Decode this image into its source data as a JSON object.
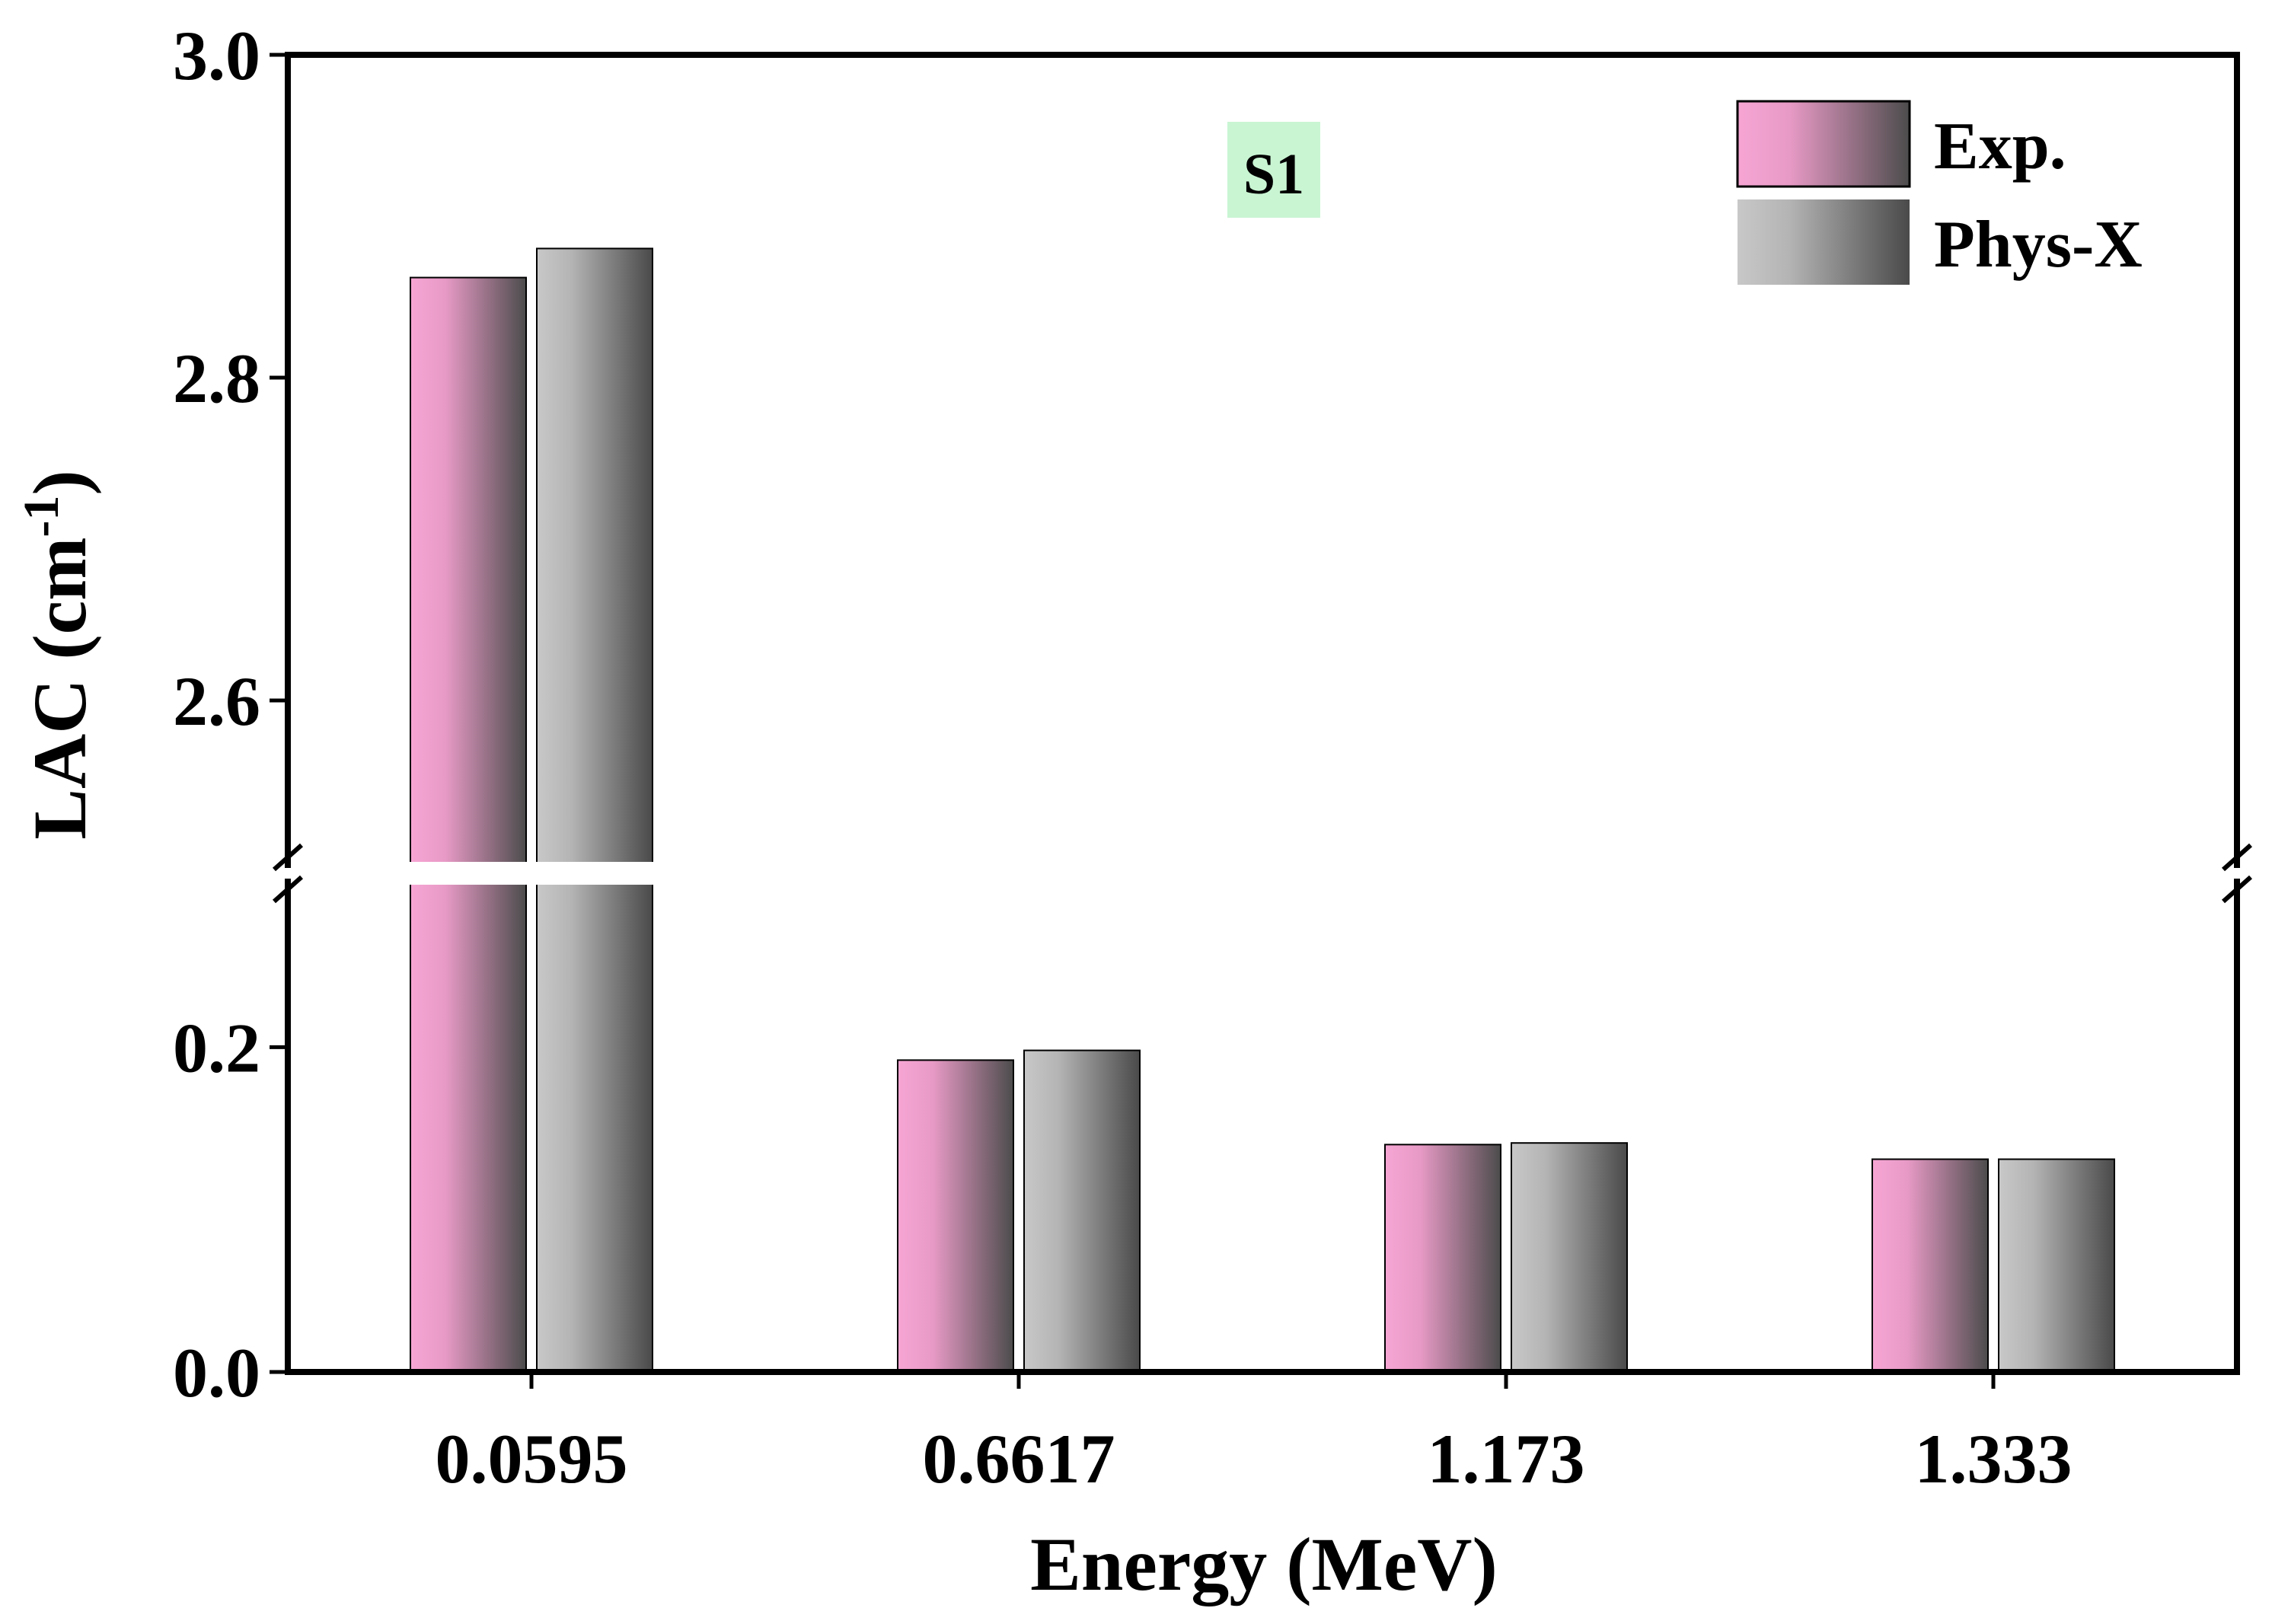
{
  "chart_data": {
    "type": "bar",
    "title": "",
    "annotation": "S1",
    "xlabel": "Energy (MeV)",
    "ylabel": {
      "main": "LAC (cm",
      "superscript": "-1",
      "close": ")"
    },
    "categories": [
      "0.0595",
      "0.6617",
      "1.173",
      "1.333"
    ],
    "series": [
      {
        "name": "Exp.",
        "values": [
          2.862,
          0.192,
          0.14,
          0.131
        ]
      },
      {
        "name": "Phys-X",
        "values": [
          2.88,
          0.198,
          0.141,
          0.131
        ]
      }
    ],
    "axis_break": {
      "lower_range": [
        0.0,
        0.3
      ],
      "upper_range": [
        2.5,
        3.0
      ],
      "lower_ticks": [
        "0.0",
        "0.2"
      ],
      "upper_ticks": [
        "2.6",
        "2.8",
        "3.0"
      ]
    },
    "legend_position": "top-right",
    "grid": false,
    "colors": {
      "exp_light": "#f7a6d4",
      "exp_dark": "#4c4c4c",
      "phys_light": "#c8c8c8",
      "phys_dark": "#4a4a4a",
      "annotation_bg": "#c9f5d3",
      "axis": "#000000"
    }
  }
}
